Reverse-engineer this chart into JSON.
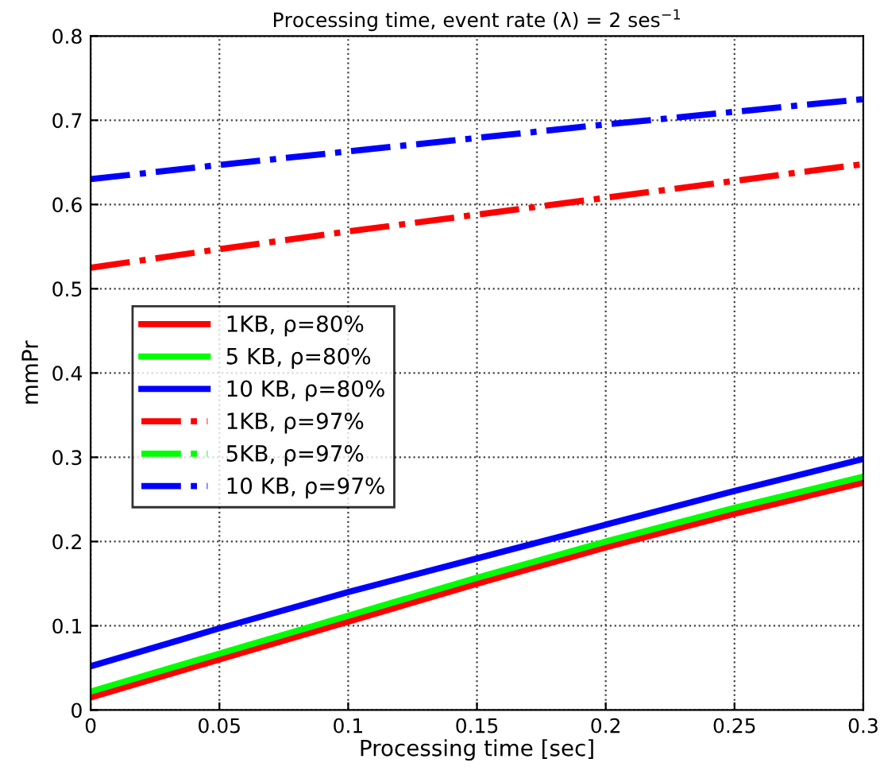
{
  "chart_data": {
    "type": "line",
    "title": "Processing time, event rate (λ) = 2 ses$^{−1}$",
    "xlabel": "Processing time [sec]",
    "ylabel": "mmPr",
    "x": [
      0,
      0.05,
      0.1,
      0.15,
      0.2,
      0.25,
      0.3
    ],
    "series": [
      {
        "name": "1KB, ρ=80%",
        "color": "#ff0000",
        "line_style": "solid",
        "values": [
          0.015,
          0.06,
          0.105,
          0.15,
          0.193,
          0.233,
          0.27
        ]
      },
      {
        "name": "5 KB, ρ=80%",
        "color": "#00ff00",
        "line_style": "solid",
        "values": [
          0.022,
          0.067,
          0.112,
          0.157,
          0.2,
          0.24,
          0.277
        ]
      },
      {
        "name": "10 KB, ρ=80%",
        "color": "#0000ff",
        "line_style": "solid",
        "values": [
          0.052,
          0.097,
          0.14,
          0.18,
          0.22,
          0.26,
          0.298
        ]
      },
      {
        "name": "1KB, ρ=97%",
        "color": "#ff0000",
        "line_style": "dashdot",
        "values": [
          0.525,
          0.547,
          0.568,
          0.588,
          0.608,
          0.628,
          0.648
        ]
      },
      {
        "name": "5KB, ρ=97%",
        "color": "#00ff00",
        "line_style": "dashdot",
        "values": [
          null,
          null,
          null,
          null,
          null,
          null,
          null
        ]
      },
      {
        "name": "10 KB, ρ=97%",
        "color": "#0000ff",
        "line_style": "dashdot",
        "values": [
          0.63,
          0.647,
          0.663,
          0.679,
          0.695,
          0.71,
          0.725
        ]
      }
    ],
    "xlim": [
      0,
      0.3
    ],
    "xticks": [
      0,
      0.05,
      0.1,
      0.15,
      0.2,
      0.25,
      0.3
    ],
    "ylim": [
      0,
      0.8
    ],
    "yticks": [
      0,
      0.1,
      0.2,
      0.3,
      0.4,
      0.5,
      0.6,
      0.7,
      0.8
    ],
    "grid": true,
    "legend": "left",
    "marker": "none"
  }
}
